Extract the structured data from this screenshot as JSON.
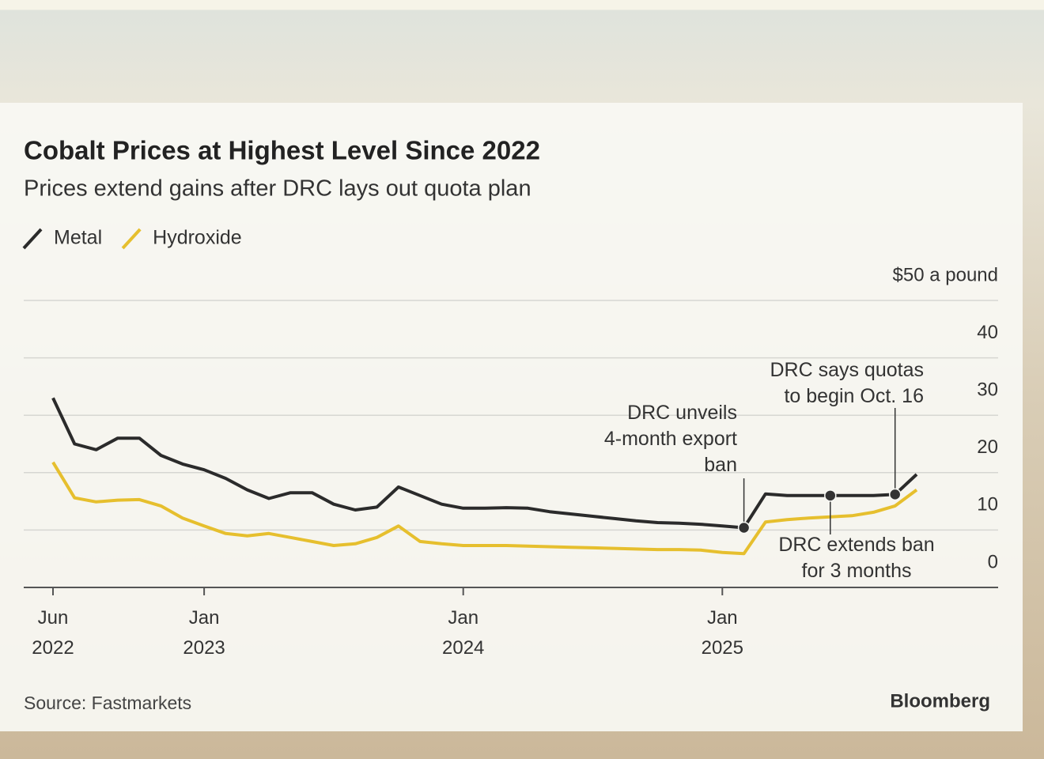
{
  "chart_data": {
    "type": "line",
    "title": "Cobalt Prices at Highest Level Since 2022",
    "subtitle": "Prices extend gains after DRC lays out quota plan",
    "source": "Source: Fastmarkets",
    "brand": "Bloomberg",
    "x": [
      "2022-06",
      "2022-07",
      "2022-08",
      "2022-09",
      "2022-10",
      "2022-11",
      "2022-12",
      "2023-01",
      "2023-02",
      "2023-03",
      "2023-04",
      "2023-05",
      "2023-06",
      "2023-07",
      "2023-08",
      "2023-09",
      "2023-10",
      "2023-11",
      "2023-12",
      "2024-01",
      "2024-02",
      "2024-03",
      "2024-04",
      "2024-05",
      "2024-06",
      "2024-07",
      "2024-08",
      "2024-09",
      "2024-10",
      "2024-11",
      "2024-12",
      "2025-01",
      "2025-02",
      "2025-03",
      "2025-04",
      "2025-05",
      "2025-06",
      "2025-07",
      "2025-08",
      "2025-09",
      "2025-10"
    ],
    "series": [
      {
        "name": "Metal",
        "color": "#2b2b2b",
        "values": [
          33,
          25,
          24,
          26,
          26,
          23,
          21.5,
          20.5,
          19,
          17,
          15.5,
          16.5,
          16.5,
          14.5,
          13.5,
          14,
          17.5,
          16,
          14.5,
          13.8,
          13.8,
          13.9,
          13.8,
          13.2,
          12.8,
          12.4,
          12,
          11.6,
          11.3,
          11.2,
          11,
          10.7,
          10.4,
          16.3,
          16,
          16,
          16,
          16,
          16,
          16.2,
          19.7
        ]
      },
      {
        "name": "Hydroxide",
        "color": "#e6bf2e",
        "values": [
          21.8,
          15.6,
          14.9,
          15.2,
          15.3,
          14.2,
          12.1,
          10.7,
          9.4,
          9,
          9.4,
          8.7,
          8,
          7.3,
          7.6,
          8.7,
          10.7,
          8,
          7.6,
          7.3,
          7.3,
          7.3,
          7.2,
          7.1,
          7,
          6.9,
          6.8,
          6.7,
          6.6,
          6.6,
          6.5,
          6.1,
          5.9,
          11.4,
          11.8,
          12.1,
          12.3,
          12.5,
          13.1,
          14.2,
          17
        ]
      }
    ],
    "xlim": [
      "2022-06",
      "2025-10"
    ],
    "xticks": [
      {
        "value": "2022-06",
        "label": [
          "Jun",
          "2022"
        ]
      },
      {
        "value": "2023-01",
        "label": [
          "Jan",
          "2023"
        ]
      },
      {
        "value": "2024-01",
        "label": [
          "Jan",
          "2024"
        ]
      },
      {
        "value": "2025-01",
        "label": [
          "Jan",
          "2025"
        ]
      }
    ],
    "ylim": [
      0,
      50
    ],
    "yticks": [
      0,
      10,
      20,
      30,
      40,
      {
        "value": 50,
        "label": "$50 a pound"
      }
    ],
    "grid": true,
    "annotations": [
      {
        "text": [
          "DRC unveils",
          "4-month export",
          "ban"
        ],
        "x": "2025-02"
      },
      {
        "text": [
          "DRC extends ban",
          "for 3 months"
        ],
        "x": "2025-06"
      },
      {
        "text": [
          "DRC says quotas",
          "to begin Oct. 16"
        ],
        "x": "2025-09"
      }
    ]
  }
}
